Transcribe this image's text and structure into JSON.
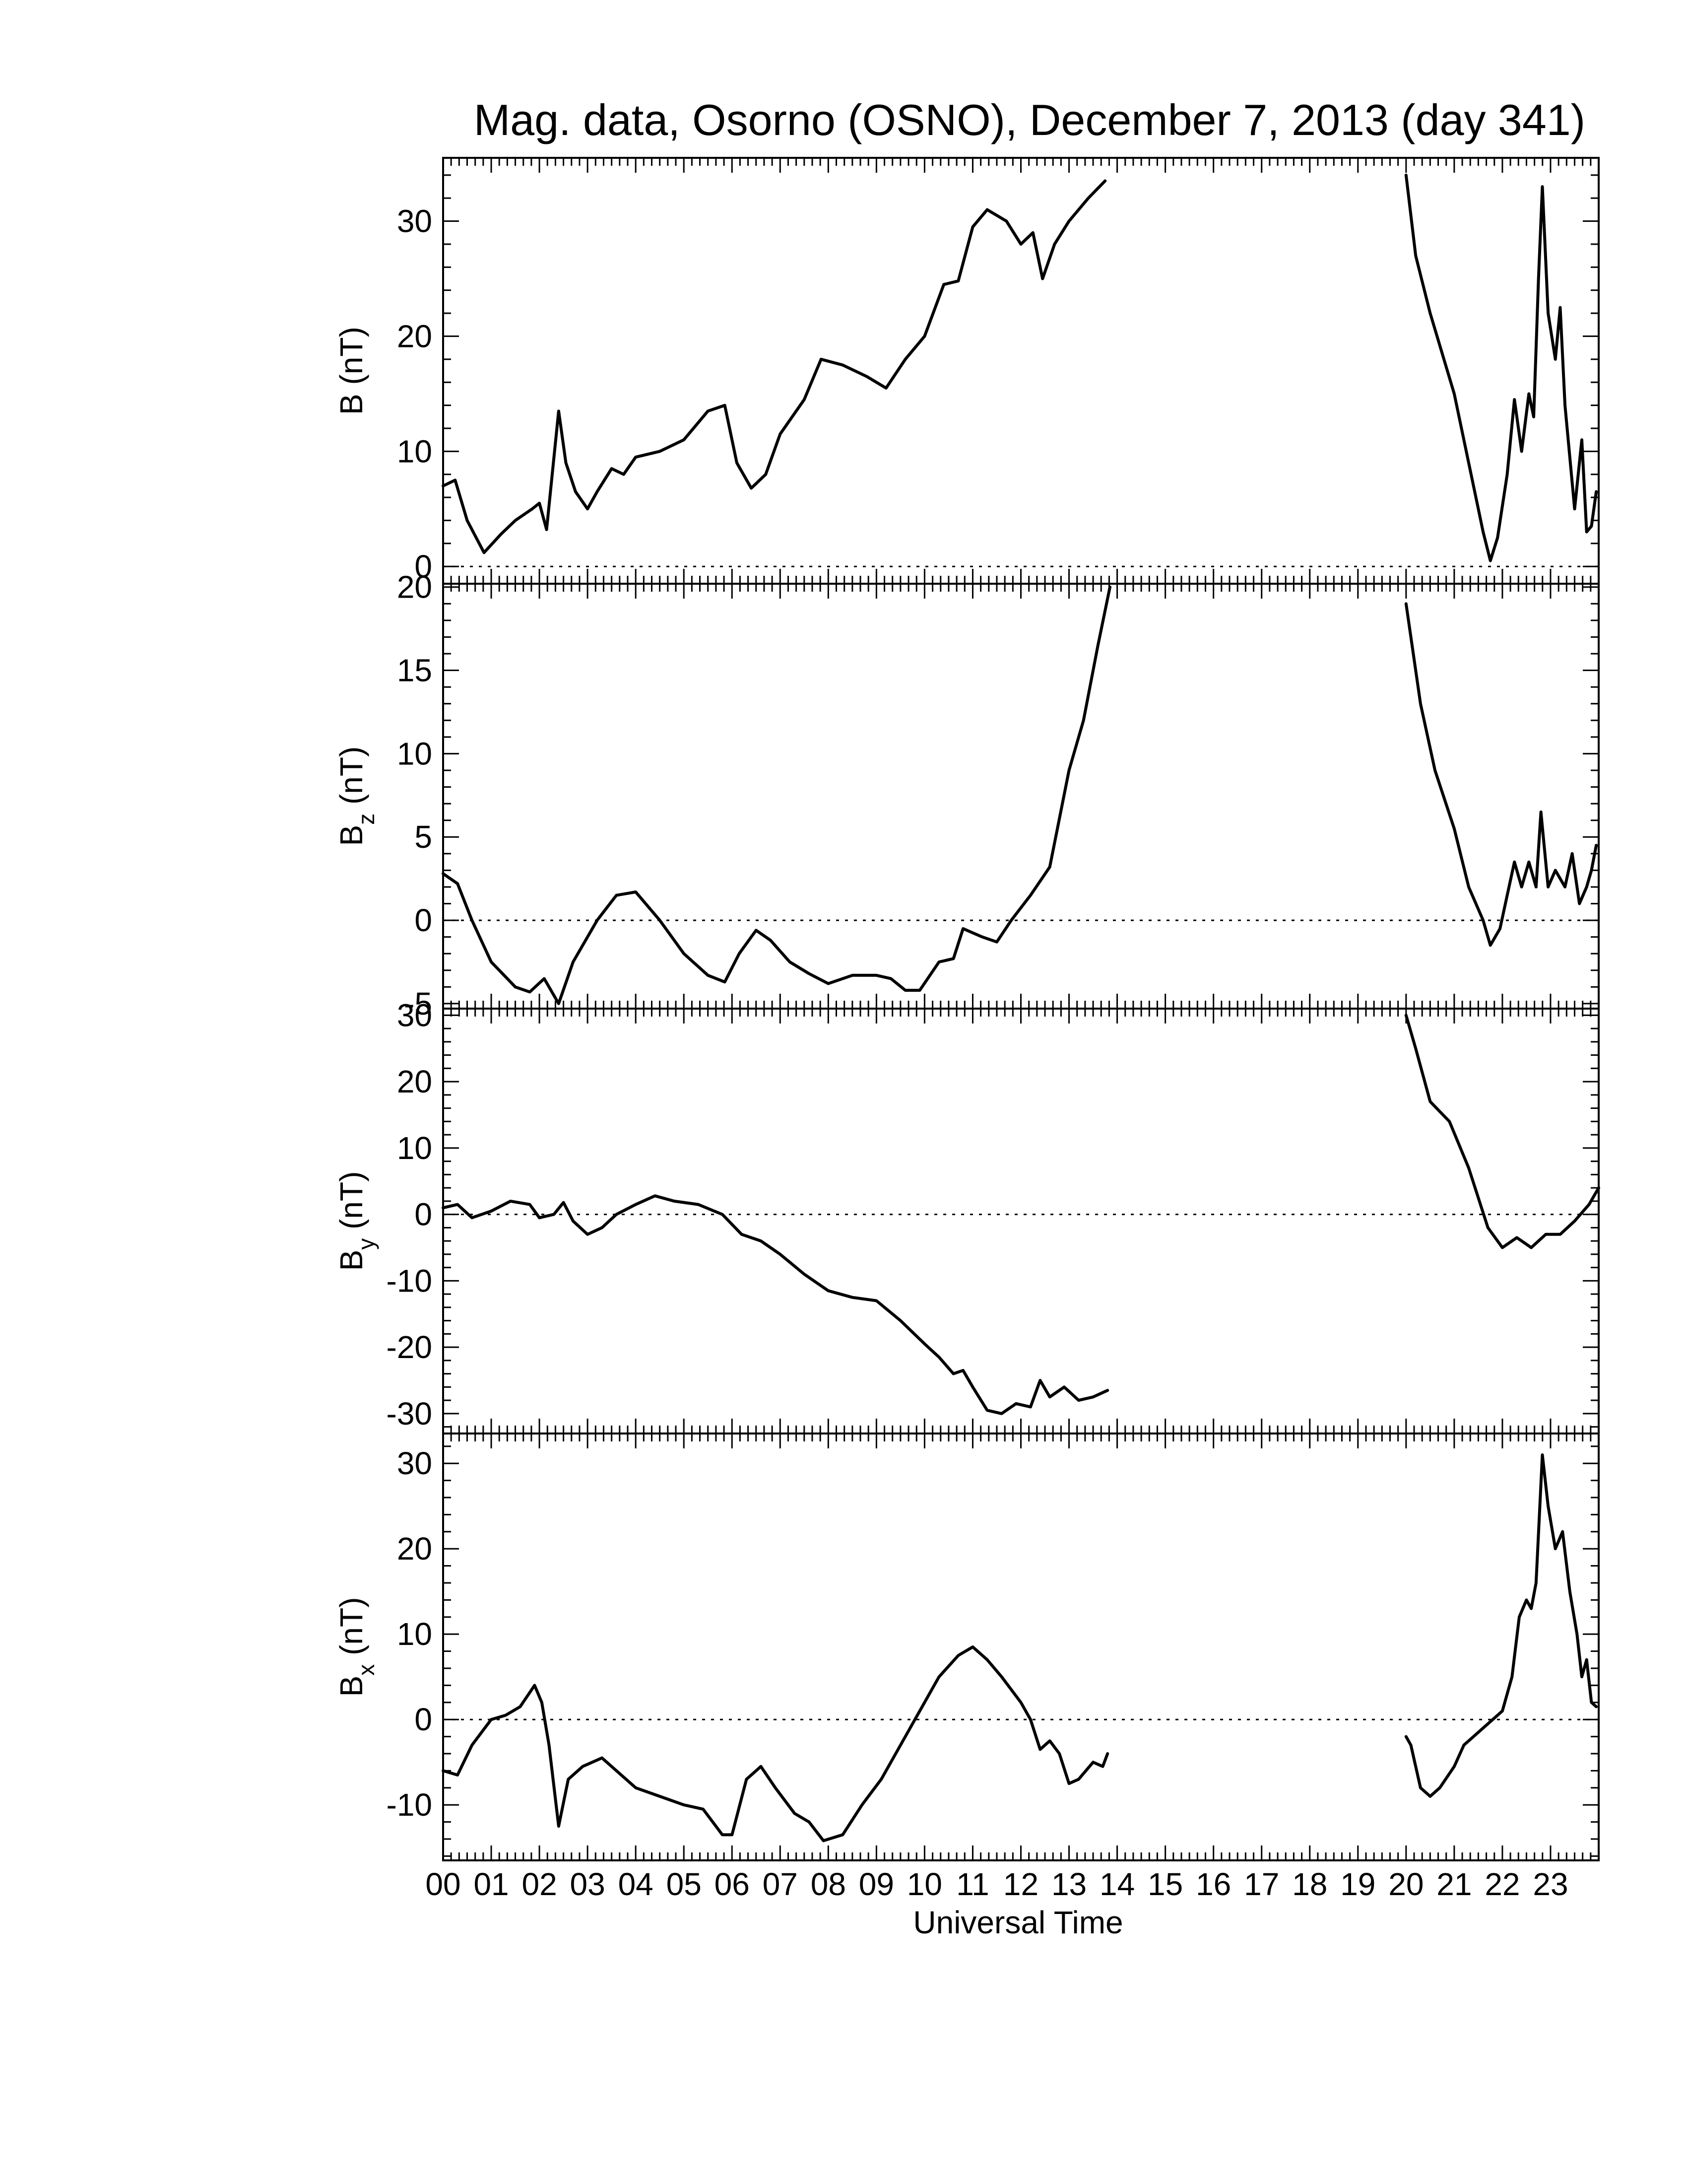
{
  "chart_data": {
    "type": "line",
    "title": "Mag. data, Osorno (OSNO), December 7, 2013 (day 341)",
    "xlabel": "Universal Time",
    "x_unit": "hours UT",
    "xlim": [
      0,
      24
    ],
    "x_tick_labels": [
      "00",
      "01",
      "02",
      "03",
      "04",
      "05",
      "06",
      "07",
      "08",
      "09",
      "10",
      "11",
      "12",
      "13",
      "14",
      "15",
      "16",
      "17",
      "18",
      "19",
      "20",
      "21",
      "22",
      "23"
    ],
    "grid": false,
    "panels": [
      {
        "key": "B",
        "ylabel": "B (nT)",
        "ylabel_main": "B",
        "ylabel_sub": "",
        "ylabel_unit": " (nT)",
        "ylim": [
          -1.5,
          35.5
        ],
        "y_ticks": [
          0,
          10,
          20,
          30
        ],
        "y_tick_labels": [
          "0",
          "10",
          "20",
          "30"
        ],
        "zero_line": true,
        "segments": [
          [
            [
              0,
              7
            ],
            [
              0.25,
              7.5
            ],
            [
              0.5,
              4
            ],
            [
              0.85,
              1.2
            ],
            [
              1.2,
              2.8
            ],
            [
              1.5,
              4
            ],
            [
              1.85,
              5
            ],
            [
              2.0,
              5.5
            ],
            [
              2.15,
              3.2
            ],
            [
              2.4,
              13.5
            ],
            [
              2.55,
              9
            ],
            [
              2.75,
              6.5
            ],
            [
              3.0,
              5
            ],
            [
              3.2,
              6.5
            ],
            [
              3.5,
              8.5
            ],
            [
              3.75,
              8
            ],
            [
              4.0,
              9.5
            ],
            [
              4.5,
              10
            ],
            [
              5.0,
              11
            ],
            [
              5.5,
              13.5
            ],
            [
              5.85,
              14
            ],
            [
              6.1,
              9
            ],
            [
              6.4,
              6.8
            ],
            [
              6.7,
              8
            ],
            [
              7.0,
              11.5
            ],
            [
              7.5,
              14.5
            ],
            [
              7.85,
              18
            ],
            [
              8.3,
              17.5
            ],
            [
              8.8,
              16.5
            ],
            [
              9.2,
              15.5
            ],
            [
              9.6,
              18
            ],
            [
              10.0,
              20
            ],
            [
              10.4,
              24.5
            ],
            [
              10.7,
              24.8
            ],
            [
              11.0,
              29.5
            ],
            [
              11.3,
              31
            ],
            [
              11.7,
              30
            ],
            [
              12.0,
              28
            ],
            [
              12.25,
              29
            ],
            [
              12.45,
              25
            ],
            [
              12.7,
              28
            ],
            [
              13.0,
              30
            ],
            [
              13.4,
              32
            ],
            [
              13.75,
              33.5
            ]
          ],
          [
            [
              20.0,
              34
            ],
            [
              20.2,
              27
            ],
            [
              20.5,
              22
            ],
            [
              21.0,
              15
            ],
            [
              21.3,
              9
            ],
            [
              21.6,
              3
            ],
            [
              21.75,
              0.5
            ],
            [
              21.9,
              2.5
            ],
            [
              22.1,
              8
            ],
            [
              22.25,
              14.5
            ],
            [
              22.4,
              10
            ],
            [
              22.55,
              15
            ],
            [
              22.65,
              13
            ],
            [
              22.75,
              25
            ],
            [
              22.83,
              33
            ],
            [
              22.95,
              22
            ],
            [
              23.1,
              18
            ],
            [
              23.2,
              22.5
            ],
            [
              23.3,
              14
            ],
            [
              23.5,
              5
            ],
            [
              23.65,
              11
            ],
            [
              23.75,
              3
            ],
            [
              23.85,
              3.5
            ],
            [
              23.95,
              6.5
            ]
          ]
        ]
      },
      {
        "key": "Bz",
        "ylabel": "Bz (nT)",
        "ylabel_main": "B",
        "ylabel_sub": "z",
        "ylabel_unit": " (nT)",
        "ylim": [
          -5.3,
          20.2
        ],
        "y_ticks": [
          -5,
          0,
          5,
          10,
          15,
          20
        ],
        "y_tick_labels": [
          "-5",
          "0",
          "5",
          "10",
          "15",
          "20"
        ],
        "zero_line": true,
        "segments": [
          [
            [
              0,
              2.8
            ],
            [
              0.3,
              2.2
            ],
            [
              0.6,
              0
            ],
            [
              1.0,
              -2.5
            ],
            [
              1.5,
              -4
            ],
            [
              1.8,
              -4.3
            ],
            [
              2.1,
              -3.5
            ],
            [
              2.4,
              -5
            ],
            [
              2.7,
              -2.5
            ],
            [
              3.2,
              0
            ],
            [
              3.6,
              1.5
            ],
            [
              4.0,
              1.7
            ],
            [
              4.5,
              0
            ],
            [
              5.0,
              -2
            ],
            [
              5.5,
              -3.3
            ],
            [
              5.85,
              -3.7
            ],
            [
              6.15,
              -2
            ],
            [
              6.5,
              -0.6
            ],
            [
              6.8,
              -1.2
            ],
            [
              7.2,
              -2.5
            ],
            [
              7.6,
              -3.2
            ],
            [
              8.0,
              -3.8
            ],
            [
              8.5,
              -3.3
            ],
            [
              9.0,
              -3.3
            ],
            [
              9.3,
              -3.5
            ],
            [
              9.6,
              -4.2
            ],
            [
              9.9,
              -4.2
            ],
            [
              10.3,
              -2.5
            ],
            [
              10.6,
              -2.3
            ],
            [
              10.8,
              -0.5
            ],
            [
              11.2,
              -1
            ],
            [
              11.5,
              -1.3
            ],
            [
              11.8,
              0
            ],
            [
              12.2,
              1.5
            ],
            [
              12.6,
              3.2
            ],
            [
              13.0,
              9
            ],
            [
              13.3,
              12
            ],
            [
              13.6,
              16.5
            ],
            [
              13.85,
              20
            ]
          ],
          [
            [
              20.0,
              19
            ],
            [
              20.3,
              13
            ],
            [
              20.6,
              9
            ],
            [
              21.0,
              5.5
            ],
            [
              21.3,
              2
            ],
            [
              21.6,
              0
            ],
            [
              21.75,
              -1.5
            ],
            [
              21.95,
              -0.5
            ],
            [
              22.1,
              1.5
            ],
            [
              22.25,
              3.5
            ],
            [
              22.4,
              2
            ],
            [
              22.55,
              3.5
            ],
            [
              22.7,
              2
            ],
            [
              22.8,
              6.5
            ],
            [
              22.95,
              2
            ],
            [
              23.1,
              3
            ],
            [
              23.3,
              2
            ],
            [
              23.45,
              4
            ],
            [
              23.6,
              1
            ],
            [
              23.75,
              2
            ],
            [
              23.85,
              3
            ],
            [
              23.95,
              4.5
            ]
          ]
        ]
      },
      {
        "key": "By",
        "ylabel": "By (nT)",
        "ylabel_main": "B",
        "ylabel_sub": "y",
        "ylabel_unit": " (nT)",
        "ylim": [
          -33,
          31
        ],
        "y_ticks": [
          -30,
          -20,
          -10,
          0,
          10,
          20,
          30
        ],
        "y_tick_labels": [
          "-30",
          "-20",
          "-10",
          "0",
          "10",
          "20",
          "30"
        ],
        "zero_line": true,
        "segments": [
          [
            [
              0,
              1
            ],
            [
              0.3,
              1.5
            ],
            [
              0.6,
              -0.5
            ],
            [
              1.0,
              0.5
            ],
            [
              1.4,
              2
            ],
            [
              1.8,
              1.5
            ],
            [
              2.0,
              -0.5
            ],
            [
              2.3,
              0
            ],
            [
              2.5,
              1.8
            ],
            [
              2.7,
              -1
            ],
            [
              3.0,
              -3
            ],
            [
              3.3,
              -2
            ],
            [
              3.6,
              0
            ],
            [
              4.0,
              1.5
            ],
            [
              4.4,
              2.8
            ],
            [
              4.8,
              2
            ],
            [
              5.3,
              1.5
            ],
            [
              5.8,
              0
            ],
            [
              6.2,
              -3
            ],
            [
              6.6,
              -4
            ],
            [
              7.0,
              -6
            ],
            [
              7.5,
              -9
            ],
            [
              8.0,
              -11.5
            ],
            [
              8.5,
              -12.5
            ],
            [
              9.0,
              -13
            ],
            [
              9.5,
              -16
            ],
            [
              10.0,
              -19.5
            ],
            [
              10.3,
              -21.5
            ],
            [
              10.6,
              -24
            ],
            [
              10.8,
              -23.5
            ],
            [
              11.0,
              -26
            ],
            [
              11.3,
              -29.5
            ],
            [
              11.6,
              -30
            ],
            [
              11.9,
              -28.5
            ],
            [
              12.2,
              -29
            ],
            [
              12.4,
              -25
            ],
            [
              12.6,
              -27.5
            ],
            [
              12.9,
              -26
            ],
            [
              13.2,
              -28
            ],
            [
              13.5,
              -27.5
            ],
            [
              13.8,
              -26.5
            ]
          ],
          [
            [
              20.0,
              30
            ],
            [
              20.2,
              25
            ],
            [
              20.5,
              17
            ],
            [
              20.9,
              14
            ],
            [
              21.3,
              7
            ],
            [
              21.7,
              -2
            ],
            [
              22.0,
              -5
            ],
            [
              22.3,
              -3.5
            ],
            [
              22.6,
              -5
            ],
            [
              22.9,
              -3
            ],
            [
              23.2,
              -3
            ],
            [
              23.5,
              -1
            ],
            [
              23.8,
              1.5
            ],
            [
              24.0,
              4
            ]
          ]
        ]
      },
      {
        "key": "Bx",
        "ylabel": "Bx (nT)",
        "ylabel_main": "B",
        "ylabel_sub": "x",
        "ylabel_unit": " (nT)",
        "ylim": [
          -16.5,
          33.5
        ],
        "y_ticks": [
          -10,
          0,
          10,
          20,
          30
        ],
        "y_tick_labels": [
          "-10",
          "0",
          "10",
          "20",
          "30"
        ],
        "zero_line": true,
        "segments": [
          [
            [
              0,
              -6
            ],
            [
              0.3,
              -6.5
            ],
            [
              0.6,
              -3
            ],
            [
              1.0,
              0
            ],
            [
              1.3,
              0.5
            ],
            [
              1.6,
              1.5
            ],
            [
              1.9,
              4
            ],
            [
              2.05,
              2
            ],
            [
              2.2,
              -3
            ],
            [
              2.4,
              -12.5
            ],
            [
              2.6,
              -7
            ],
            [
              2.9,
              -5.5
            ],
            [
              3.3,
              -4.5
            ],
            [
              3.6,
              -6
            ],
            [
              4.0,
              -8
            ],
            [
              4.5,
              -9
            ],
            [
              5.0,
              -10
            ],
            [
              5.4,
              -10.5
            ],
            [
              5.8,
              -13.5
            ],
            [
              6.0,
              -13.5
            ],
            [
              6.3,
              -7
            ],
            [
              6.6,
              -5.5
            ],
            [
              6.9,
              -8
            ],
            [
              7.3,
              -11
            ],
            [
              7.6,
              -12
            ],
            [
              7.9,
              -14.2
            ],
            [
              8.3,
              -13.5
            ],
            [
              8.7,
              -10
            ],
            [
              9.1,
              -7
            ],
            [
              9.5,
              -3
            ],
            [
              9.9,
              1
            ],
            [
              10.3,
              5
            ],
            [
              10.7,
              7.5
            ],
            [
              11.0,
              8.5
            ],
            [
              11.3,
              7
            ],
            [
              11.6,
              5
            ],
            [
              12.0,
              2
            ],
            [
              12.2,
              0
            ],
            [
              12.4,
              -3.5
            ],
            [
              12.6,
              -2.5
            ],
            [
              12.8,
              -4
            ],
            [
              13.0,
              -7.5
            ],
            [
              13.2,
              -7
            ],
            [
              13.5,
              -5
            ],
            [
              13.7,
              -5.5
            ],
            [
              13.8,
              -4
            ]
          ],
          [
            [
              20.0,
              -2
            ],
            [
              20.1,
              -3
            ],
            [
              20.3,
              -8
            ],
            [
              20.5,
              -9
            ],
            [
              20.7,
              -8
            ],
            [
              21.0,
              -5.5
            ],
            [
              21.2,
              -3
            ],
            [
              21.4,
              -2
            ],
            [
              21.6,
              -1
            ],
            [
              21.8,
              0
            ],
            [
              22.0,
              1
            ],
            [
              22.2,
              5
            ],
            [
              22.35,
              12
            ],
            [
              22.5,
              14
            ],
            [
              22.6,
              13
            ],
            [
              22.7,
              16
            ],
            [
              22.83,
              31
            ],
            [
              22.95,
              25
            ],
            [
              23.1,
              20
            ],
            [
              23.25,
              22
            ],
            [
              23.4,
              15
            ],
            [
              23.55,
              10
            ],
            [
              23.65,
              5
            ],
            [
              23.75,
              7
            ],
            [
              23.85,
              2
            ],
            [
              23.95,
              1.5
            ]
          ]
        ]
      }
    ]
  }
}
